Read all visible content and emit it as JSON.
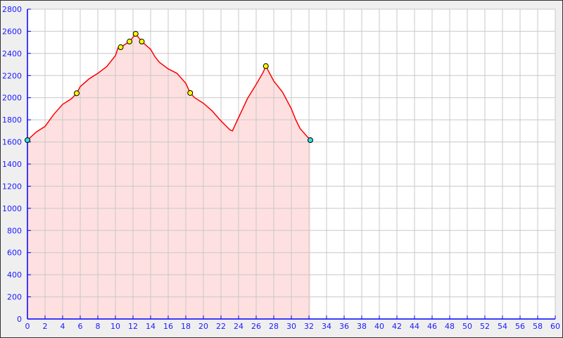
{
  "chart_data": {
    "type": "area",
    "title": "",
    "xlabel": "",
    "ylabel": "",
    "xlim": [
      0,
      60
    ],
    "ylim": [
      0,
      2800
    ],
    "x_ticks": [
      0,
      2,
      4,
      6,
      8,
      10,
      12,
      14,
      16,
      18,
      20,
      22,
      24,
      26,
      28,
      30,
      32,
      34,
      36,
      38,
      40,
      42,
      44,
      46,
      48,
      50,
      52,
      54,
      56,
      58,
      60
    ],
    "y_ticks": [
      0,
      200,
      400,
      600,
      800,
      1000,
      1200,
      1400,
      1600,
      1800,
      2000,
      2200,
      2400,
      2600,
      2800
    ],
    "grid": true,
    "colors": {
      "line": "#ff0000",
      "fill": "#ffe0e0",
      "axis": "#0000ff",
      "grid": "#c8c8c8",
      "waypoint": "#ffff00",
      "endpoint": "#33dddd"
    },
    "series": [
      {
        "x": [
          0,
          1,
          2,
          3,
          4,
          5,
          5.6,
          6,
          7,
          8,
          9,
          10,
          10.3,
          10.6,
          11.6,
          12.3,
          13,
          14,
          14.5,
          15,
          16,
          17,
          18,
          18.5,
          19,
          20,
          21,
          22,
          23,
          23.3,
          24,
          25,
          26,
          26.8,
          27.1,
          28,
          29,
          30,
          30.5,
          31,
          32.16
        ],
        "y": [
          1616,
          1690,
          1740,
          1850,
          1940,
          1990,
          2040,
          2100,
          2170,
          2220,
          2280,
          2380,
          2450,
          2456,
          2507,
          2577,
          2507,
          2437,
          2370,
          2320,
          2260,
          2220,
          2130,
          2043,
          2000,
          1950,
          1880,
          1790,
          1710,
          1700,
          1820,
          1990,
          2120,
          2230,
          2285,
          2150,
          2050,
          1900,
          1800,
          1720,
          1616
        ]
      }
    ],
    "endpoints": [
      {
        "x": 0,
        "y": 1616
      },
      {
        "x": 32.16,
        "y": 1616
      }
    ],
    "waypoints": [
      {
        "x": 5.6,
        "y": 2040
      },
      {
        "x": 10.6,
        "y": 2456
      },
      {
        "x": 11.6,
        "y": 2507
      },
      {
        "x": 12.3,
        "y": 2577
      },
      {
        "x": 13,
        "y": 2507
      },
      {
        "x": 18.5,
        "y": 2043
      },
      {
        "x": 27.1,
        "y": 2285
      }
    ]
  }
}
